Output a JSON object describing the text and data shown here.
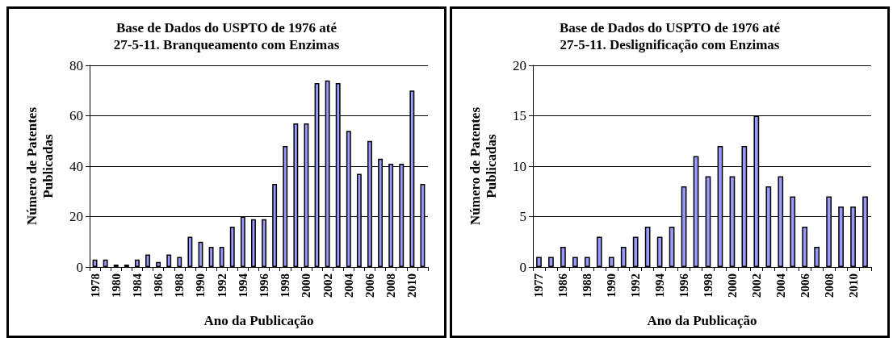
{
  "chart_data": [
    {
      "type": "bar",
      "title": "Base de Dados do USPTO de 1976 até\n27-5-11. Branqueamento com Enzimas",
      "xlabel": "Ano da Publicação",
      "ylabel": "Número de Patentes\nPublicadas",
      "categories": [
        "1978",
        null,
        "1980",
        null,
        "1984",
        null,
        "1986",
        null,
        "1988",
        null,
        "1990",
        null,
        "1992",
        null,
        "1994",
        null,
        "1996",
        null,
        "1998",
        null,
        "2000",
        null,
        "2002",
        null,
        "2004",
        null,
        "2006",
        null,
        "2008",
        null,
        "2010",
        null
      ],
      "values": [
        3,
        3,
        1,
        1,
        3,
        5,
        2,
        5,
        4,
        12,
        10,
        8,
        8,
        16,
        20,
        19,
        19,
        33,
        48,
        57,
        57,
        73,
        74,
        73,
        54,
        37,
        50,
        43,
        41,
        41,
        70,
        33
      ],
      "color": "#9999ff",
      "ylim": [
        0,
        80
      ],
      "yticks": [
        0,
        20,
        40,
        60,
        80
      ],
      "grid": "y"
    },
    {
      "type": "bar",
      "title": "Base de Dados do USPTO de 1976 até\n27-5-11. Deslignificação com Enzimas",
      "xlabel": "Ano da Publicação",
      "ylabel": "Número de Patentes\nPublicadas",
      "categories": [
        "1977",
        null,
        "1986",
        null,
        "1988",
        null,
        "1990",
        null,
        "1992",
        null,
        "1994",
        null,
        "1996",
        null,
        "1998",
        null,
        "2000",
        null,
        "2002",
        null,
        "2004",
        null,
        "2006",
        null,
        "2008",
        null,
        "2010",
        null
      ],
      "values": [
        1,
        1,
        2,
        1,
        1,
        3,
        1,
        2,
        3,
        4,
        3,
        4,
        8,
        11,
        9,
        12,
        9,
        12,
        15,
        8,
        9,
        7,
        4,
        2,
        7,
        6,
        6,
        7
      ],
      "color": "#9999ff",
      "ylim": [
        0,
        20
      ],
      "yticks": [
        0,
        5,
        10,
        15,
        20
      ],
      "grid": "y"
    }
  ]
}
